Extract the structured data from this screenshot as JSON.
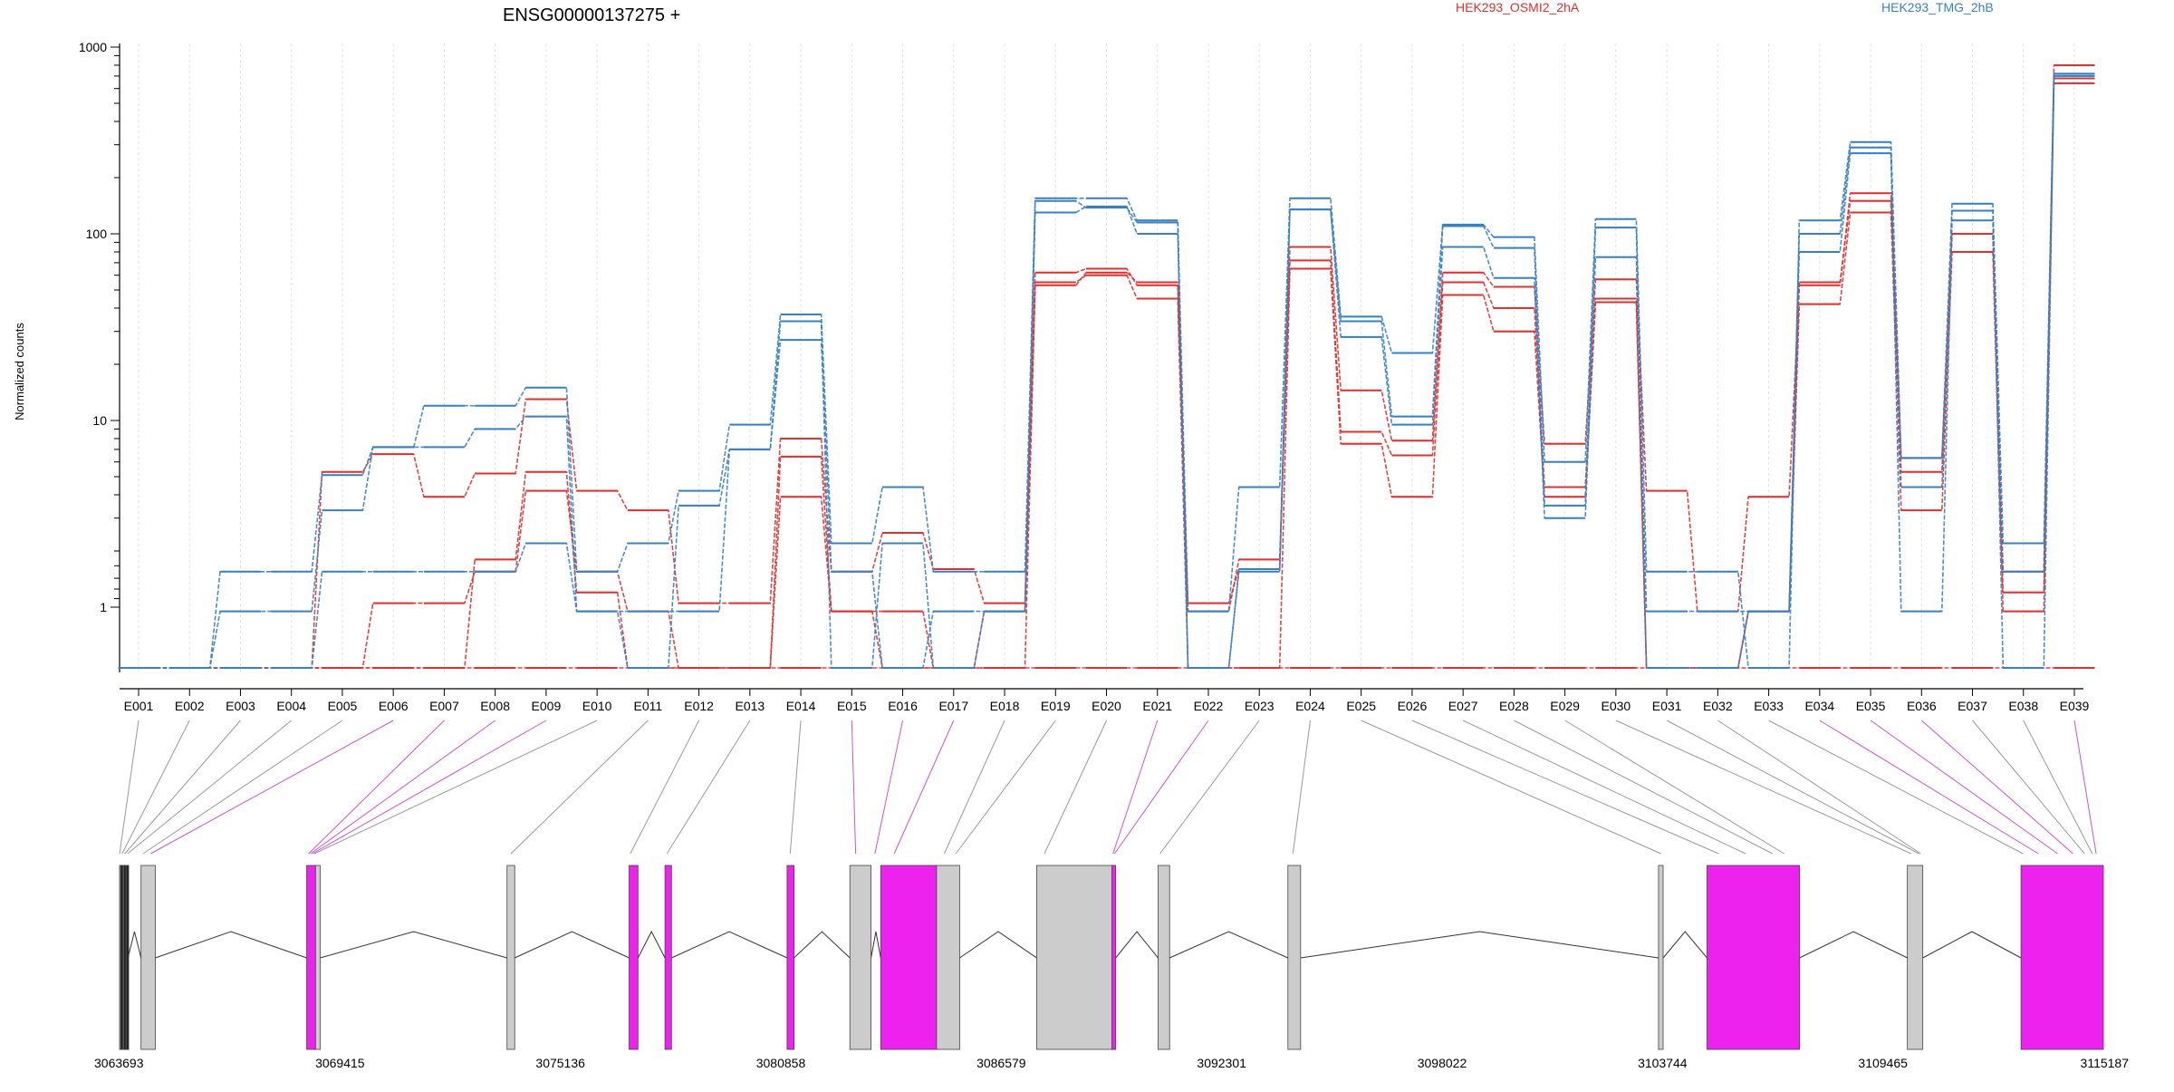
{
  "chart_data": {
    "type": "line",
    "title": "ENSG00000137275 +",
    "ylabel": "Normalized counts",
    "yscale": "log",
    "ylim": [
      0.5,
      1000
    ],
    "yticks": [
      "1",
      "10",
      "100",
      "1000"
    ],
    "grid": "vertical dashed at exon centers",
    "legend": [
      {
        "name": "HEK293_OSMI2_2hA",
        "color": "#e03030"
      },
      {
        "name": "HEK293_TMG_2hB",
        "color": "#3a80c0"
      }
    ],
    "categories": [
      "E001",
      "E002",
      "E003",
      "E004",
      "E005",
      "E006",
      "E007",
      "E008",
      "E009",
      "E010",
      "E011",
      "E012",
      "E013",
      "E014",
      "E015",
      "E016",
      "E017",
      "E018",
      "E019",
      "E020",
      "E021",
      "E022",
      "E023",
      "E024",
      "E025",
      "E026",
      "E027",
      "E028",
      "E029",
      "E030",
      "E031",
      "E032",
      "E033",
      "E034",
      "E035",
      "E036",
      "E037",
      "E038",
      "E039"
    ],
    "series": [
      {
        "group": "HEK293_OSMI2_2hA",
        "color": "#e03030",
        "values": [
          0.5,
          0.5,
          0.5,
          0.5,
          5.3,
          6.6,
          3.9,
          5.2,
          13,
          4.2,
          3.3,
          1.05,
          1.05,
          8,
          1.55,
          2.5,
          1.6,
          1.05,
          62,
          65,
          53,
          1.05,
          1.6,
          85,
          14.5,
          7.8,
          62,
          52,
          7.5,
          57,
          4.2,
          0.95,
          3.9,
          53,
          165,
          6.3,
          100,
          1.55,
          800
        ]
      },
      {
        "group": "HEK293_OSMI2_2hA",
        "color": "#e03030",
        "values": [
          0.5,
          0.5,
          0.5,
          0.5,
          0.5,
          1.05,
          1.05,
          1.55,
          4.2,
          1.55,
          0.95,
          0.5,
          0.5,
          3.9,
          0.95,
          0.95,
          0.5,
          0.5,
          55,
          60,
          45,
          0.5,
          0.5,
          65,
          7.5,
          3.9,
          47,
          30,
          3.9,
          43,
          0.5,
          0.5,
          0.95,
          42,
          130,
          3.3,
          80,
          0.95,
          640
        ]
      },
      {
        "group": "HEK293_OSMI2_2hA",
        "color": "#e03030",
        "values": [
          0.5,
          0.5,
          0.5,
          0.5,
          0.5,
          0.5,
          0.5,
          0.5,
          0.5,
          0.5,
          0.5,
          0.5,
          0.5,
          0.5,
          0.5,
          0.5,
          0.5,
          0.5,
          0.5,
          0.5,
          0.5,
          0.5,
          0.5,
          0.5,
          0.5,
          0.5,
          0.5,
          0.5,
          0.5,
          0.5,
          0.5,
          0.5,
          0.5,
          0.5,
          0.5,
          0.5,
          0.5,
          0.5,
          0.5
        ]
      },
      {
        "group": "HEK293_OSMI2_2hA",
        "color": "#e03030",
        "values": [
          0.5,
          0.5,
          0.5,
          0.5,
          0.5,
          0.5,
          0.5,
          1.8,
          5.3,
          1.2,
          0.5,
          0.5,
          0.5,
          6.4,
          0.95,
          0.5,
          0.5,
          0.95,
          53,
          62,
          55,
          0.95,
          1.8,
          72,
          8.7,
          6.5,
          55,
          40,
          4.4,
          45,
          0.5,
          0.5,
          0.95,
          55,
          150,
          5.3,
          100,
          1.2,
          680
        ]
      },
      {
        "group": "HEK293_TMG_2hB",
        "color": "#3a80c0",
        "values": [
          0.5,
          0.5,
          1.55,
          1.55,
          5.1,
          7.2,
          12,
          12,
          15,
          1.55,
          2.2,
          4.2,
          9.5,
          37,
          2.2,
          4.4,
          1.55,
          1.55,
          155,
          155,
          118,
          0.95,
          4.4,
          155,
          36,
          23,
          112,
          96,
          6,
          120,
          1.55,
          1.55,
          0.5,
          118,
          310,
          6.3,
          145,
          2.2,
          720
        ]
      },
      {
        "group": "HEK293_TMG_2hB",
        "color": "#3a80c0",
        "values": [
          0.5,
          0.5,
          0.95,
          0.95,
          3.3,
          7.2,
          7.2,
          9,
          10.5,
          0.95,
          0.5,
          3.5,
          7,
          27,
          1.55,
          0.5,
          0.95,
          0.95,
          130,
          140,
          100,
          0.5,
          1.55,
          135,
          28,
          9.5,
          85,
          58,
          3,
          75,
          0.95,
          0.95,
          0.95,
          80,
          270,
          0.95,
          118,
          1.55,
          700
        ]
      },
      {
        "group": "HEK293_TMG_2hB",
        "color": "#3a80c0",
        "values": [
          0.5,
          0.5,
          0.5,
          0.5,
          1.55,
          1.55,
          1.55,
          1.55,
          2.2,
          0.95,
          0.95,
          0.95,
          7,
          34,
          0.5,
          2.2,
          0.5,
          0.95,
          150,
          138,
          115,
          0.5,
          1.6,
          135,
          34,
          10.5,
          110,
          84,
          3.5,
          108,
          0.5,
          0.5,
          0.95,
          100,
          290,
          4.4,
          133,
          0.5,
          720
        ]
      }
    ],
    "gene_model": {
      "coordinate_ticks": [
        "3063693",
        "3069415",
        "3075136",
        "3080858",
        "3086579",
        "3092301",
        "3098022",
        "3103744",
        "3109465",
        "3115187"
      ],
      "range": [
        3063693,
        3115187
      ],
      "highlight_color": "#ee22ee",
      "exon_color": "#cccccc",
      "blocks": [
        {
          "start": 3063693,
          "end": 3063910,
          "highlight": false
        },
        {
          "start": 3063720,
          "end": 3063760,
          "highlight": false,
          "dark": true
        },
        {
          "start": 3063800,
          "end": 3063830,
          "highlight": false,
          "dark": true
        },
        {
          "start": 3063870,
          "end": 3063900,
          "highlight": false,
          "dark": true
        },
        {
          "start": 3064250,
          "end": 3064620,
          "highlight": false
        },
        {
          "start": 3068550,
          "end": 3068780,
          "highlight": true
        },
        {
          "start": 3068780,
          "end": 3068900,
          "highlight": false
        },
        {
          "start": 3073750,
          "end": 3073950,
          "highlight": false
        },
        {
          "start": 3076920,
          "end": 3077150,
          "highlight": true
        },
        {
          "start": 3077850,
          "end": 3078020,
          "highlight": true
        },
        {
          "start": 3081020,
          "end": 3081200,
          "highlight": true
        },
        {
          "start": 3082650,
          "end": 3083200,
          "highlight": false
        },
        {
          "start": 3083450,
          "end": 3084900,
          "highlight": true
        },
        {
          "start": 3084900,
          "end": 3085500,
          "highlight": false
        },
        {
          "start": 3087500,
          "end": 3089500,
          "highlight": false
        },
        {
          "start": 3089450,
          "end": 3089550,
          "highlight": true
        },
        {
          "start": 3090650,
          "end": 3090950,
          "highlight": false
        },
        {
          "start": 3094020,
          "end": 3094350,
          "highlight": false
        },
        {
          "start": 3103640,
          "end": 3103760,
          "highlight": false
        },
        {
          "start": 3104900,
          "end": 3107300,
          "highlight": true
        },
        {
          "start": 3110100,
          "end": 3110500,
          "highlight": false
        },
        {
          "start": 3113050,
          "end": 3115187,
          "highlight": true
        }
      ]
    }
  }
}
